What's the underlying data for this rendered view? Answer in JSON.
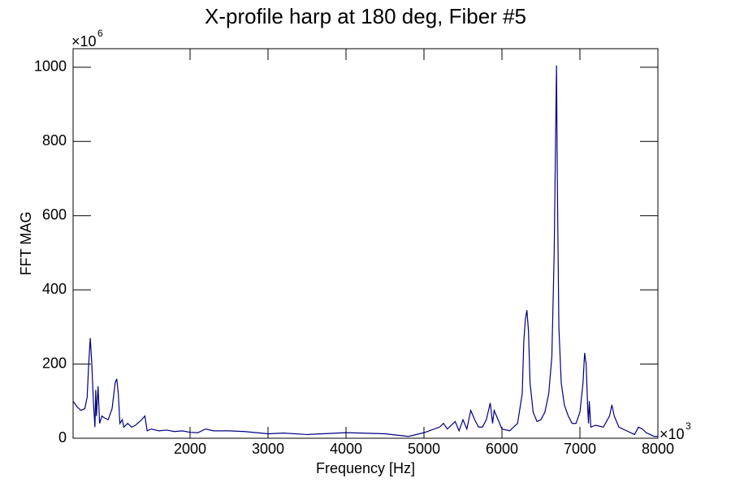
{
  "chart_data": {
    "type": "line",
    "title": "X-profile harp at 180 deg, Fiber #5",
    "x_label": "Frequency [Hz]",
    "y_label": "FFT MAG",
    "x_multiplier": {
      "base": "×10",
      "exp": "3"
    },
    "y_multiplier": {
      "base": "×10",
      "exp": "6"
    },
    "xlim": [
      500,
      8000
    ],
    "xticks": [
      2000,
      3000,
      4000,
      5000,
      6000,
      7000,
      8000
    ],
    "ylim": [
      0,
      1050
    ],
    "yticks": [
      0,
      200,
      400,
      600,
      800,
      1000
    ],
    "x": [
      500,
      550,
      600,
      650,
      680,
      700,
      720,
      740,
      760,
      780,
      790,
      800,
      820,
      840,
      870,
      900,
      950,
      1000,
      1040,
      1060,
      1080,
      1100,
      1130,
      1150,
      1200,
      1250,
      1300,
      1380,
      1420,
      1450,
      1500,
      1600,
      1700,
      1800,
      1900,
      2000,
      2100,
      2200,
      2300,
      2500,
      2700,
      3000,
      3200,
      3500,
      3700,
      4000,
      4200,
      4500,
      4800,
      5000,
      5200,
      5250,
      5300,
      5400,
      5450,
      5500,
      5550,
      5600,
      5650,
      5700,
      5750,
      5800,
      5850,
      5880,
      5900,
      5950,
      6000,
      6100,
      6200,
      6260,
      6280,
      6300,
      6320,
      6340,
      6360,
      6400,
      6450,
      6500,
      6550,
      6600,
      6640,
      6670,
      6690,
      6700,
      6710,
      6730,
      6760,
      6800,
      6850,
      6900,
      6950,
      7000,
      7040,
      7060,
      7080,
      7100,
      7110,
      7120,
      7140,
      7200,
      7300,
      7380,
      7410,
      7440,
      7500,
      7600,
      7700,
      7750,
      7800,
      7850,
      7900,
      7950,
      8000
    ],
    "series": [
      {
        "name": "FFT MAG",
        "color": "#000080",
        "values": [
          100,
          85,
          75,
          80,
          110,
          200,
          270,
          200,
          100,
          30,
          130,
          60,
          140,
          40,
          60,
          55,
          50,
          80,
          150,
          160,
          120,
          40,
          50,
          30,
          40,
          30,
          35,
          50,
          60,
          20,
          25,
          20,
          22,
          18,
          20,
          16,
          15,
          25,
          20,
          20,
          18,
          12,
          14,
          10,
          12,
          15,
          14,
          12,
          5,
          15,
          30,
          40,
          25,
          45,
          20,
          50,
          25,
          75,
          50,
          30,
          30,
          50,
          95,
          40,
          75,
          50,
          25,
          20,
          40,
          120,
          260,
          320,
          345,
          290,
          150,
          70,
          45,
          50,
          70,
          120,
          220,
          500,
          850,
          1005,
          700,
          300,
          150,
          90,
          60,
          40,
          40,
          70,
          150,
          230,
          200,
          80,
          40,
          100,
          30,
          35,
          30,
          60,
          90,
          60,
          30,
          20,
          10,
          30,
          25,
          15,
          10,
          5,
          5
        ]
      }
    ]
  }
}
